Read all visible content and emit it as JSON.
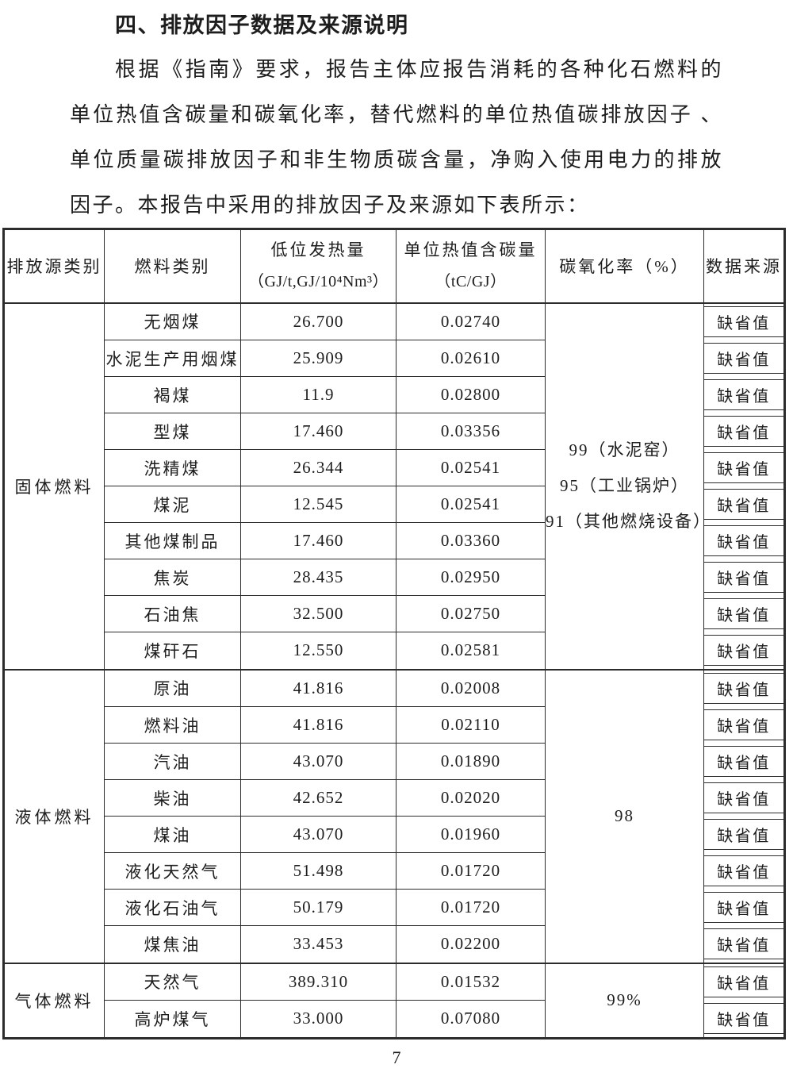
{
  "page": {
    "title": "四、排放因子数据及来源说明",
    "paragraph": {
      "lines": [
        "根据《指南》要求，报告主体应报告消耗的各种化石燃料的",
        "单位热值含碳量和碳氧化率，替代燃料的单位热值碳排放因子 、",
        "单位质量碳排放因子和非生物质碳含量，净购入使用电力的排放",
        "因子。本报告中采用的排放因子及来源如下表所示："
      ]
    },
    "page_number": "7"
  },
  "table": {
    "column_headers": {
      "source_category": "排放源类别",
      "fuel_type": "燃料类别",
      "heating_value_line1": "低位发热量",
      "heating_value_line2": "（GJ/t,GJ/10⁴Nm³）",
      "carbon_content_line1": "单位热值含碳量",
      "carbon_content_line2": "（tC/GJ）",
      "oxidation_rate": "碳氧化率（%）",
      "data_source": "数据来源"
    },
    "sections": [
      {
        "category": "固体燃料",
        "oxidation_lines": [
          "99（水泥窑）",
          "95（工业锅炉）",
          "91（其他燃烧设备）"
        ],
        "rows": [
          {
            "fuel": "无烟煤",
            "heating_value": "26.700",
            "carbon_content": "0.02740",
            "data_source": "缺省值"
          },
          {
            "fuel": "水泥生产用烟煤",
            "heating_value": "25.909",
            "carbon_content": "0.02610",
            "data_source": "缺省值"
          },
          {
            "fuel": "褐煤",
            "heating_value": "11.9",
            "carbon_content": "0.02800",
            "data_source": "缺省值"
          },
          {
            "fuel": "型煤",
            "heating_value": "17.460",
            "carbon_content": "0.03356",
            "data_source": "缺省值"
          },
          {
            "fuel": "洗精煤",
            "heating_value": "26.344",
            "carbon_content": "0.02541",
            "data_source": "缺省值"
          },
          {
            "fuel": "煤泥",
            "heating_value": "12.545",
            "carbon_content": "0.02541",
            "data_source": "缺省值"
          },
          {
            "fuel": "其他煤制品",
            "heating_value": "17.460",
            "carbon_content": "0.03360",
            "data_source": "缺省值"
          },
          {
            "fuel": "焦炭",
            "heating_value": "28.435",
            "carbon_content": "0.02950",
            "data_source": "缺省值"
          },
          {
            "fuel": "石油焦",
            "heating_value": "32.500",
            "carbon_content": "0.02750",
            "data_source": "缺省值"
          },
          {
            "fuel": "煤矸石",
            "heating_value": "12.550",
            "carbon_content": "0.02581",
            "data_source": "缺省值"
          }
        ]
      },
      {
        "category": "液体燃料",
        "oxidation_lines": [
          "98"
        ],
        "rows": [
          {
            "fuel": "原油",
            "heating_value": "41.816",
            "carbon_content": "0.02008",
            "data_source": "缺省值"
          },
          {
            "fuel": "燃料油",
            "heating_value": "41.816",
            "carbon_content": "0.02110",
            "data_source": "缺省值"
          },
          {
            "fuel": "汽油",
            "heating_value": "43.070",
            "carbon_content": "0.01890",
            "data_source": "缺省值"
          },
          {
            "fuel": "柴油",
            "heating_value": "42.652",
            "carbon_content": "0.02020",
            "data_source": "缺省值"
          },
          {
            "fuel": "煤油",
            "heating_value": "43.070",
            "carbon_content": "0.01960",
            "data_source": "缺省值"
          },
          {
            "fuel": "液化天然气",
            "heating_value": "51.498",
            "carbon_content": "0.01720",
            "data_source": "缺省值"
          },
          {
            "fuel": "液化石油气",
            "heating_value": "50.179",
            "carbon_content": "0.01720",
            "data_source": "缺省值"
          },
          {
            "fuel": "煤焦油",
            "heating_value": "33.453",
            "carbon_content": "0.02200",
            "data_source": "缺省值"
          }
        ]
      },
      {
        "category": "气体燃料",
        "oxidation_lines": [
          "99%"
        ],
        "rows": [
          {
            "fuel": "天然气",
            "heating_value": "389.310",
            "carbon_content": "0.01532",
            "data_source": "缺省值"
          },
          {
            "fuel": "高炉煤气",
            "heating_value": "33.000",
            "carbon_content": "0.07080",
            "data_source": "缺省值"
          }
        ]
      }
    ]
  }
}
